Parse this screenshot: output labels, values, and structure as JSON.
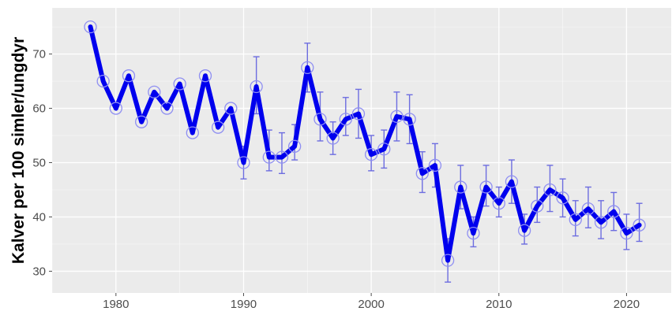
{
  "chart_data": {
    "type": "line",
    "title": "",
    "xlabel": "",
    "ylabel": "Kalver per 100 simler/ungdyr",
    "xlim": [
      1975,
      2023.5
    ],
    "ylim": [
      26,
      78.5
    ],
    "x_ticks": [
      1980,
      1990,
      2000,
      2010,
      2020
    ],
    "y_ticks": [
      30,
      40,
      50,
      60,
      70
    ],
    "grid": true,
    "legend": "none",
    "colors": {
      "line": "#0000ee",
      "marker": "#8f8ff2",
      "errorbar": "#6d6de0",
      "panel": "#ebebeb",
      "grid_major": "#ffffff"
    },
    "series": [
      {
        "x": [
          1978,
          1979,
          1980,
          1981,
          1982,
          1983,
          1984,
          1985,
          1986,
          1987,
          1988,
          1989,
          1990,
          1991,
          1992,
          1993,
          1994,
          1995,
          1996,
          1997,
          1998,
          1999,
          2000,
          2001,
          2002,
          2003,
          2004,
          2005,
          2006,
          2007,
          2008,
          2009,
          2010,
          2011,
          2012,
          2013,
          2014,
          2015,
          2016,
          2017,
          2018,
          2019,
          2020,
          2021
        ],
        "values": [
          75,
          65,
          60,
          66,
          57.5,
          63,
          60,
          64.5,
          55.5,
          66,
          56.5,
          60,
          50,
          64,
          51,
          51,
          53,
          67.5,
          58,
          54.5,
          58,
          59,
          51.5,
          52.5,
          58.5,
          58,
          48,
          49.5,
          32,
          45.5,
          37,
          45.5,
          42.5,
          46.5,
          37.5,
          42,
          45,
          43.5,
          39.5,
          41.5,
          39,
          41,
          37,
          38.5
        ],
        "error_low": [
          null,
          null,
          null,
          null,
          null,
          null,
          null,
          null,
          null,
          null,
          null,
          null,
          47,
          59,
          48.5,
          48,
          50.5,
          63,
          54,
          51.5,
          55,
          54.5,
          48.5,
          49,
          54,
          53.5,
          44.5,
          45.5,
          28,
          41.5,
          34.5,
          42,
          40,
          42.5,
          35,
          39,
          41,
          40,
          36.5,
          38,
          36,
          37.5,
          34,
          35.5
        ],
        "error_high": [
          null,
          null,
          null,
          null,
          null,
          null,
          null,
          null,
          null,
          null,
          null,
          null,
          53,
          69.5,
          56,
          55.5,
          57,
          72,
          63,
          57.5,
          62,
          63.5,
          55,
          56,
          63,
          62.5,
          52,
          53.5,
          36,
          49.5,
          40,
          49.5,
          45.5,
          50.5,
          40.5,
          45.5,
          49.5,
          47,
          43,
          45.5,
          43,
          44.5,
          40.5,
          42.5
        ]
      }
    ]
  }
}
